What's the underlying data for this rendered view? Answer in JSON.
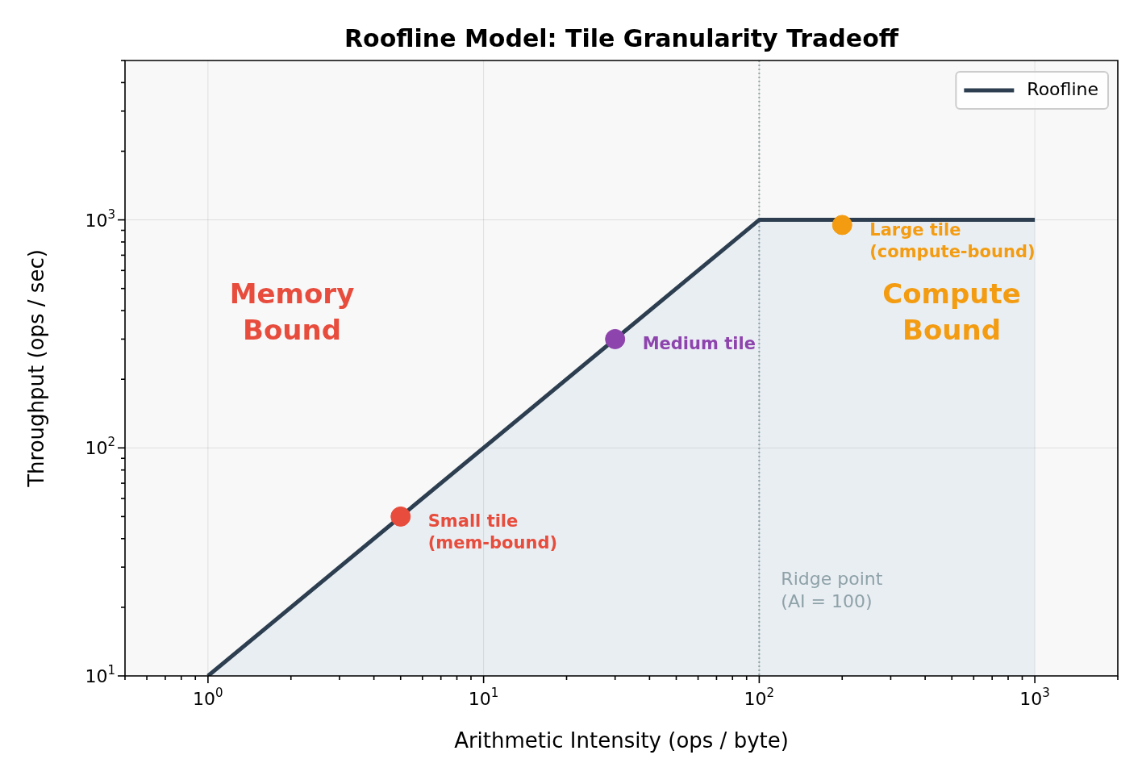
{
  "chart_data": {
    "type": "area",
    "title": "Roofline Model: Tile Granularity Tradeoff",
    "xlabel": "Arithmetic Intensity (ops / byte)",
    "ylabel": "Throughput (ops / sec)",
    "log": "xy",
    "grid": true,
    "legend": "top right",
    "xlim": [
      0.5,
      2000
    ],
    "ylim": [
      10,
      5000
    ],
    "xticks": [
      {
        "value": 0.5,
        "label": null
      },
      {
        "value": 0.6,
        "label": null
      },
      {
        "value": 0.7,
        "label": null
      },
      {
        "value": 0.8,
        "label": null
      },
      {
        "value": 0.9,
        "label": null
      },
      {
        "value": 1,
        "label": "10$^{0}$"
      },
      {
        "value": 2,
        "label": null
      },
      {
        "value": 3,
        "label": null
      },
      {
        "value": 4,
        "label": null
      },
      {
        "value": 5,
        "label": null
      },
      {
        "value": 6,
        "label": null
      },
      {
        "value": 7,
        "label": null
      },
      {
        "value": 8,
        "label": null
      },
      {
        "value": 9,
        "label": null
      },
      {
        "value": 10,
        "label": "10$^{1}$"
      },
      {
        "value": 20,
        "label": null
      },
      {
        "value": 30,
        "label": null
      },
      {
        "value": 40,
        "label": null
      },
      {
        "value": 50,
        "label": null
      },
      {
        "value": 60,
        "label": null
      },
      {
        "value": 70,
        "label": null
      },
      {
        "value": 80,
        "label": null
      },
      {
        "value": 90,
        "label": null
      },
      {
        "value": 100,
        "label": "10$^{2}$"
      },
      {
        "value": 200,
        "label": null
      },
      {
        "value": 300,
        "label": null
      },
      {
        "value": 400,
        "label": null
      },
      {
        "value": 500,
        "label": null
      },
      {
        "value": 600,
        "label": null
      },
      {
        "value": 700,
        "label": null
      },
      {
        "value": 800,
        "label": null
      },
      {
        "value": 900,
        "label": null
      },
      {
        "value": 1000,
        "label": "10$^{3}$"
      },
      {
        "value": 2000,
        "label": null
      }
    ],
    "yticks": [
      {
        "value": 10,
        "label": "10$^{1}$"
      },
      {
        "value": 20,
        "label": null
      },
      {
        "value": 30,
        "label": null
      },
      {
        "value": 40,
        "label": null
      },
      {
        "value": 50,
        "label": null
      },
      {
        "value": 60,
        "label": null
      },
      {
        "value": 70,
        "label": null
      },
      {
        "value": 80,
        "label": null
      },
      {
        "value": 90,
        "label": null
      },
      {
        "value": 100,
        "label": "10$^{2}$"
      },
      {
        "value": 200,
        "label": null
      },
      {
        "value": 300,
        "label": null
      },
      {
        "value": 400,
        "label": null
      },
      {
        "value": 500,
        "label": null
      },
      {
        "value": 600,
        "label": null
      },
      {
        "value": 700,
        "label": null
      },
      {
        "value": 800,
        "label": null
      },
      {
        "value": 900,
        "label": null
      },
      {
        "value": 1000,
        "label": "10$^{3}$"
      },
      {
        "value": 2000,
        "label": null
      },
      {
        "value": 3000,
        "label": null
      },
      {
        "value": 4000,
        "label": null
      },
      {
        "value": 5000,
        "label": null
      }
    ],
    "series": [
      {
        "name": "Roofline",
        "color": "#2c3e50",
        "x": [
          1,
          100,
          1000
        ],
        "values": [
          10,
          1000,
          1000
        ]
      },
      {
        "name": "Small tile\n(mem-bound)",
        "type": "scatter",
        "color": "#e74c3c",
        "x": [
          5
        ],
        "values": [
          50
        ]
      },
      {
        "name": "Medium tile",
        "type": "scatter",
        "color": "#8e44ad",
        "x": [
          30
        ],
        "values": [
          300
        ]
      },
      {
        "name": "Large tile\n(compute-bound)",
        "type": "scatter",
        "color": "#f39c12",
        "x": [
          200
        ],
        "values": [
          950
        ]
      }
    ],
    "ref_lines": [
      {
        "axis": "x",
        "value": 100,
        "label": "Ridge point\n(AI = 100)",
        "color": "#95a5a6",
        "line_style": "dotted"
      }
    ],
    "annotations": [
      "Memory\nBound",
      "Compute\nBound"
    ]
  }
}
